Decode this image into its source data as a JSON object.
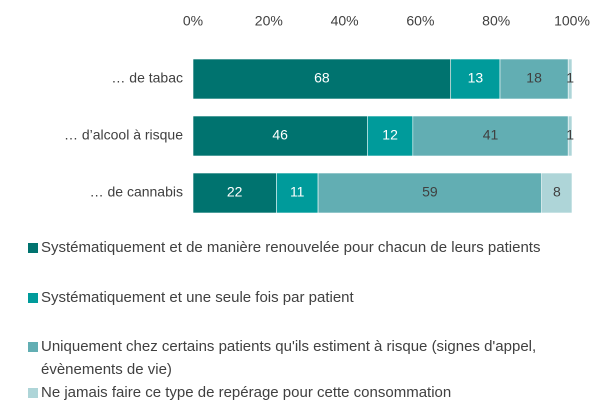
{
  "chart_data": {
    "type": "bar",
    "orientation": "horizontal",
    "stacked": true,
    "categories": [
      "… de tabac",
      "… d’alcool  à risque",
      "… de cannabis"
    ],
    "series": [
      {
        "name": "Systématiquement et de manière renouvelée pour chacun de leurs patients",
        "color": "#00736f",
        "values": [
          68,
          46,
          22
        ]
      },
      {
        "name": "Systématiquement et une seule fois par patient",
        "color": "#009b9b",
        "values": [
          13,
          12,
          11
        ]
      },
      {
        "name": "Uniquement chez certains patients qu'ils estiment à risque (signes d'appel, évènements de vie)",
        "color": "#62aeb3",
        "values": [
          18,
          41,
          59
        ]
      },
      {
        "name": "Ne jamais faire ce type de repérage pour cette consommation",
        "color": "#aed5d8",
        "values": [
          1,
          1,
          8
        ]
      }
    ],
    "xlim": [
      0,
      100
    ],
    "xticks": [
      {
        "value": 0,
        "label": "0%"
      },
      {
        "value": 20,
        "label": "20%"
      },
      {
        "value": 40,
        "label": "40%"
      },
      {
        "value": 60,
        "label": "60%"
      },
      {
        "value": 80,
        "label": "80%"
      },
      {
        "value": 100,
        "label": "100%"
      }
    ],
    "grid": false,
    "legend": "bottom"
  }
}
